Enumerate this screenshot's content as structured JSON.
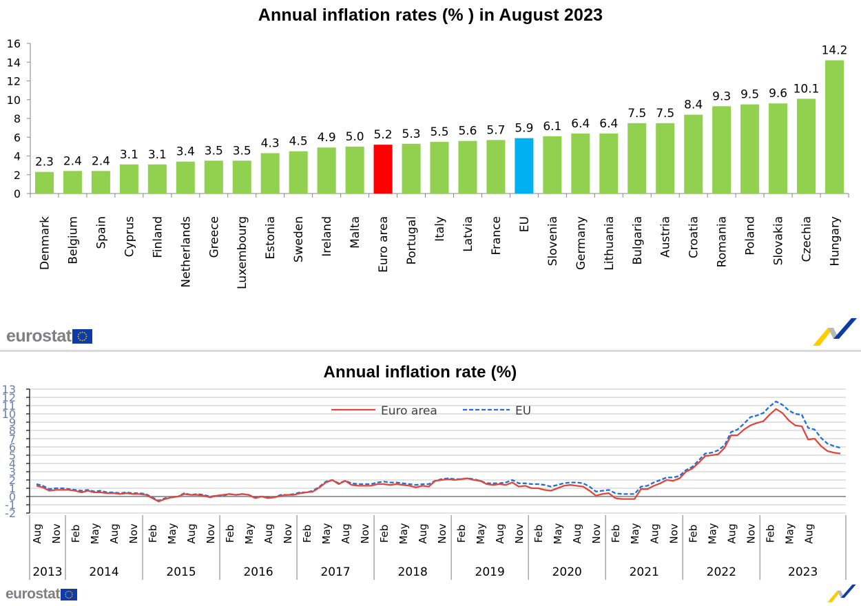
{
  "chart_data": [
    {
      "type": "bar",
      "title": "Annual inflation rates (% ) in August 2023",
      "xlabel": "",
      "ylabel": "",
      "ylim": [
        0,
        16
      ],
      "yticks": [
        0,
        2,
        4,
        6,
        8,
        10,
        12,
        14,
        16
      ],
      "grid": false,
      "categories": [
        "Denmark",
        "Belgium",
        "Spain",
        "Cyprus",
        "Finland",
        "Netherlands",
        "Greece",
        "Luxembourg",
        "Estonia",
        "Sweden",
        "Ireland",
        "Malta",
        "Euro area",
        "Portugal",
        "Italy",
        "Latvia",
        "France",
        "EU",
        "Slovenia",
        "Germany",
        "Lithuania",
        "Bulgaria",
        "Austria",
        "Croatia",
        "Romania",
        "Poland",
        "Slovakia",
        "Czechia",
        "Hungary"
      ],
      "values": [
        2.3,
        2.4,
        2.4,
        3.1,
        3.1,
        3.4,
        3.5,
        3.5,
        4.3,
        4.5,
        4.9,
        5.0,
        5.2,
        5.3,
        5.5,
        5.6,
        5.7,
        5.9,
        6.1,
        6.4,
        6.4,
        7.5,
        7.5,
        8.4,
        9.3,
        9.5,
        9.6,
        10.1,
        14.2
      ],
      "data_labels": [
        "2.3",
        "2.4",
        "2.4",
        "3.1",
        "3.1",
        "3.4",
        "3.5",
        "3.5",
        "4.3",
        "4.5",
        "4.9",
        "5.0",
        "5.2",
        "5.3",
        "5.5",
        "5.6",
        "5.7",
        "5.9",
        "6.1",
        "6.4",
        "6.4",
        "7.5",
        "7.5",
        "8.4",
        "9.3",
        "9.5",
        "9.6",
        "10.1",
        "14.2"
      ],
      "colors": {
        "default": "#92d050",
        "Euro area": "#ff0000",
        "EU": "#00b0f0"
      }
    },
    {
      "type": "line",
      "title": "Annual inflation rate (%)",
      "xlabel": "",
      "ylabel": "",
      "ylim": [
        -2,
        13
      ],
      "yticks": [
        -2,
        -1,
        0,
        1,
        2,
        3,
        4,
        5,
        6,
        7,
        8,
        9,
        10,
        11,
        12,
        13
      ],
      "grid": true,
      "legend_placement": "top-center",
      "x_start": "2013-08",
      "x_end": "2023-08",
      "x_month_labels": [
        "Aug",
        "Nov",
        "Feb",
        "May",
        "Aug",
        "Nov",
        "Feb",
        "May",
        "Aug",
        "Nov",
        "Feb",
        "May",
        "Aug",
        "Nov",
        "Feb",
        "May",
        "Aug",
        "Nov",
        "Feb",
        "May",
        "Aug",
        "Nov",
        "Feb",
        "May",
        "Aug",
        "Nov",
        "Feb",
        "May",
        "Aug",
        "Nov",
        "Feb",
        "May",
        "Aug",
        "Nov",
        "Feb",
        "May",
        "Aug",
        "Nov",
        "Feb",
        "May",
        "Aug"
      ],
      "x_year_labels": [
        "2013",
        "2014",
        "2015",
        "2016",
        "2017",
        "2018",
        "2019",
        "2020",
        "2021",
        "2022",
        "2023"
      ],
      "series": [
        {
          "name": "Euro area",
          "color": "#e0463b",
          "style": "solid",
          "values": [
            1.3,
            1.1,
            0.7,
            0.8,
            0.8,
            0.8,
            0.7,
            0.5,
            0.7,
            0.5,
            0.5,
            0.4,
            0.4,
            0.3,
            0.4,
            0.3,
            0.3,
            0.2,
            -0.2,
            -0.6,
            -0.3,
            -0.1,
            0.0,
            0.3,
            0.2,
            0.2,
            0.1,
            -0.1,
            0.1,
            0.2,
            0.3,
            0.2,
            0.3,
            0.2,
            -0.2,
            0.0,
            -0.2,
            -0.1,
            0.1,
            0.2,
            0.2,
            0.4,
            0.5,
            0.6,
            1.1,
            1.7,
            2.0,
            1.5,
            1.9,
            1.4,
            1.3,
            1.3,
            1.3,
            1.5,
            1.5,
            1.4,
            1.5,
            1.4,
            1.3,
            1.1,
            1.3,
            1.2,
            1.9,
            2.0,
            2.1,
            2.0,
            2.1,
            2.2,
            2.0,
            1.9,
            1.5,
            1.4,
            1.5,
            1.4,
            1.7,
            1.2,
            1.3,
            1.0,
            1.0,
            0.8,
            0.7,
            1.0,
            1.3,
            1.4,
            1.3,
            1.2,
            0.7,
            0.1,
            0.3,
            0.4,
            -0.2,
            -0.3,
            -0.3,
            -0.3,
            0.9,
            0.9,
            1.3,
            1.6,
            2.0,
            1.9,
            2.2,
            3.0,
            3.4,
            4.1,
            4.9,
            5.0,
            5.1,
            5.9,
            7.4,
            7.4,
            8.1,
            8.6,
            8.9,
            9.1,
            9.9,
            10.6,
            10.1,
            9.2,
            8.6,
            8.5,
            6.9,
            7.0,
            6.1,
            5.5,
            5.3,
            5.2
          ]
        },
        {
          "name": "EU",
          "color": "#1f6fd6",
          "style": "dashed",
          "values": [
            1.5,
            1.3,
            0.9,
            1.0,
            1.0,
            0.9,
            0.8,
            0.7,
            0.8,
            0.6,
            0.7,
            0.5,
            0.5,
            0.4,
            0.5,
            0.4,
            0.4,
            0.3,
            -0.1,
            -0.5,
            -0.2,
            -0.1,
            0.0,
            0.4,
            0.2,
            0.3,
            0.2,
            0.0,
            0.1,
            0.1,
            0.3,
            0.2,
            0.3,
            0.2,
            -0.1,
            0.0,
            -0.1,
            -0.1,
            0.2,
            0.2,
            0.3,
            0.5,
            0.5,
            0.7,
            1.2,
            1.8,
            2.0,
            1.6,
            1.9,
            1.6,
            1.5,
            1.5,
            1.5,
            1.7,
            1.8,
            1.7,
            1.7,
            1.6,
            1.5,
            1.4,
            1.5,
            1.5,
            1.9,
            2.1,
            2.2,
            2.1,
            2.1,
            2.2,
            2.1,
            1.9,
            1.6,
            1.6,
            1.6,
            1.7,
            2.0,
            1.6,
            1.6,
            1.5,
            1.5,
            1.4,
            1.2,
            1.4,
            1.6,
            1.7,
            1.7,
            1.6,
            1.2,
            0.6,
            0.7,
            0.8,
            0.4,
            0.3,
            0.3,
            0.3,
            1.2,
            1.3,
            1.7,
            2.0,
            2.3,
            2.3,
            2.5,
            3.2,
            3.6,
            4.4,
            5.2,
            5.3,
            5.6,
            6.2,
            7.8,
            8.1,
            8.8,
            9.6,
            9.8,
            10.1,
            10.9,
            11.5,
            11.1,
            10.4,
            10.0,
            9.9,
            8.3,
            8.1,
            7.1,
            6.4,
            6.1,
            5.9
          ]
        }
      ]
    }
  ],
  "branding": {
    "logo_text": "eurostat",
    "flag_icon": "eu-flag-icon",
    "swoosh_icon": "eurostat-swoosh-icon"
  }
}
